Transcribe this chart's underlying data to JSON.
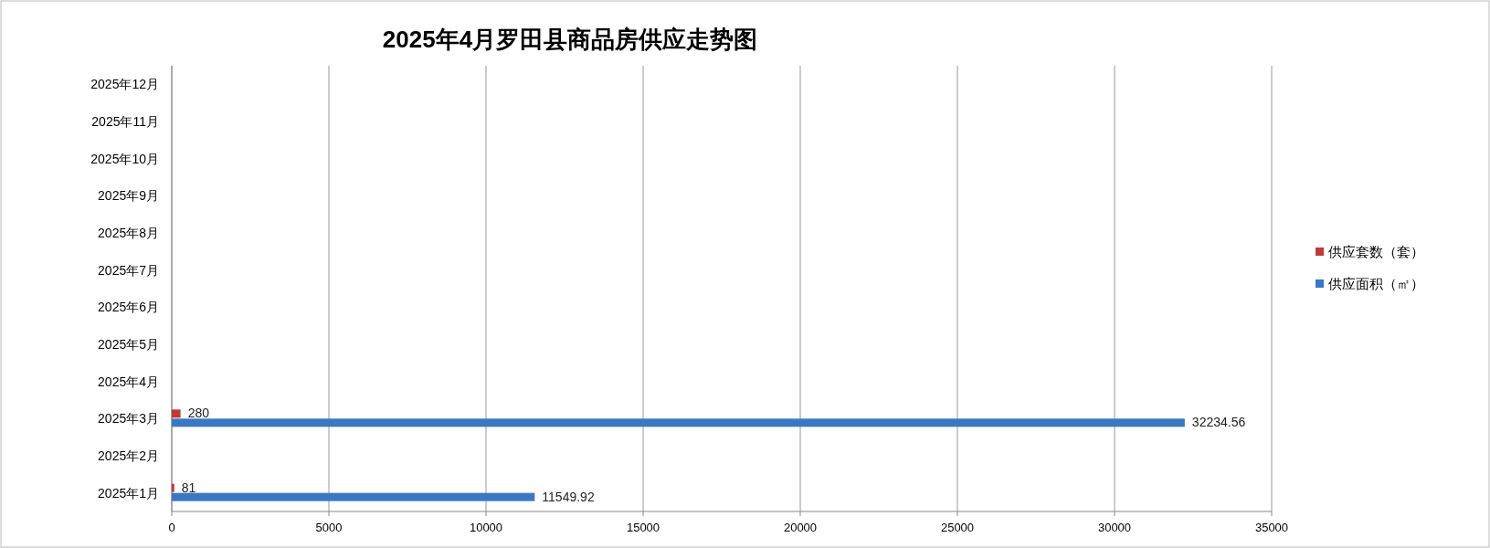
{
  "chart_data": {
    "type": "bar",
    "orientation": "horizontal",
    "title": "2025年4月罗田县商品房供应走势图",
    "categories": [
      "2025年12月",
      "2025年11月",
      "2025年10月",
      "2025年9月",
      "2025年8月",
      "2025年7月",
      "2025年6月",
      "2025年5月",
      "2025年4月",
      "2025年3月",
      "2025年2月",
      "2025年1月"
    ],
    "series": [
      {
        "name": "供应套数（套）",
        "color": "#c0393a",
        "values": [
          null,
          null,
          null,
          null,
          null,
          null,
          null,
          null,
          null,
          280,
          null,
          81
        ]
      },
      {
        "name": "供应面积（㎡）",
        "color": "#3b78c3",
        "values": [
          null,
          null,
          null,
          null,
          null,
          null,
          null,
          null,
          null,
          32234.56,
          null,
          11549.92
        ]
      }
    ],
    "xlim": [
      0,
      35000
    ],
    "xticks": [
      0,
      5000,
      10000,
      15000,
      20000,
      25000,
      30000,
      35000
    ],
    "grid": "x",
    "legend": "right",
    "data_labels": true
  }
}
